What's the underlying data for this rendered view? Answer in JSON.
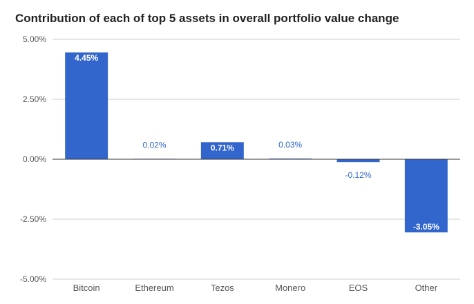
{
  "chart_data": {
    "type": "bar",
    "title": "Contribution of each of top 5 assets in overall portfolio value change",
    "categories": [
      "Bitcoin",
      "Ethereum",
      "Tezos",
      "Monero",
      "EOS",
      "Other"
    ],
    "values": [
      4.45,
      0.02,
      0.71,
      0.03,
      -0.12,
      -3.05
    ],
    "data_labels": [
      "4.45%",
      "0.02%",
      "0.71%",
      "0.03%",
      "-0.12%",
      "-3.05%"
    ],
    "y_ticks": [
      5.0,
      2.5,
      0.0,
      -2.5,
      -5.0
    ],
    "y_tick_labels": [
      "5.00%",
      "2.50%",
      "0.00%",
      "-2.50%",
      "-5.00%"
    ],
    "ylim": [
      -5,
      5
    ],
    "xlabel": "",
    "ylabel": "",
    "grid": true,
    "colors": {
      "bar": "#3366cc",
      "label_inside": "#ffffff",
      "label_outside": "#3366cc",
      "grid": "#cccccc",
      "zero_line": "#333333"
    }
  }
}
